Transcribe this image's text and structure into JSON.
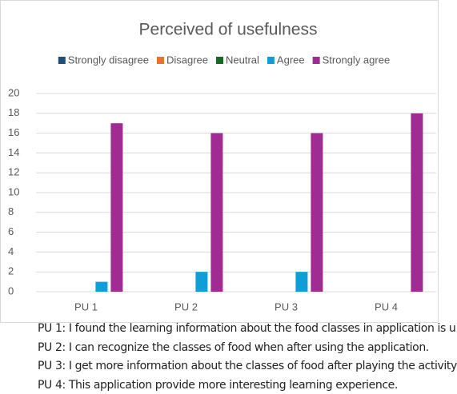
{
  "chart_data": {
    "type": "bar",
    "title": "Perceived of usefulness",
    "categories": [
      "PU 1",
      "PU 2",
      "PU 3",
      "PU 4"
    ],
    "series": [
      {
        "name": "Strongly disagree",
        "color": "#1f4e79",
        "values": [
          0,
          0,
          0,
          0
        ]
      },
      {
        "name": "Disagree",
        "color": "#e97132",
        "values": [
          0,
          0,
          0,
          0
        ]
      },
      {
        "name": "Neutral",
        "color": "#196b24",
        "values": [
          0,
          0,
          0,
          0
        ]
      },
      {
        "name": "Agree",
        "color": "#0f9ed5",
        "values": [
          1,
          2,
          2,
          0
        ]
      },
      {
        "name": "Strongly agree",
        "color": "#a02b93",
        "values": [
          17,
          16,
          16,
          18
        ]
      }
    ],
    "ylim": [
      0,
      20
    ],
    "yticks": [
      0,
      2,
      4,
      6,
      8,
      10,
      12,
      14,
      16,
      18,
      20
    ],
    "grid": true,
    "legend": "top"
  },
  "notes": [
    "PU 1: I found the learning information about the food classes in application is u",
    "PU 2: I can recognize the classes of food when after using the application.",
    "PU 3: I get more information about the classes of food after playing the activity",
    "PU 4: This application provide more interesting learning experience."
  ]
}
